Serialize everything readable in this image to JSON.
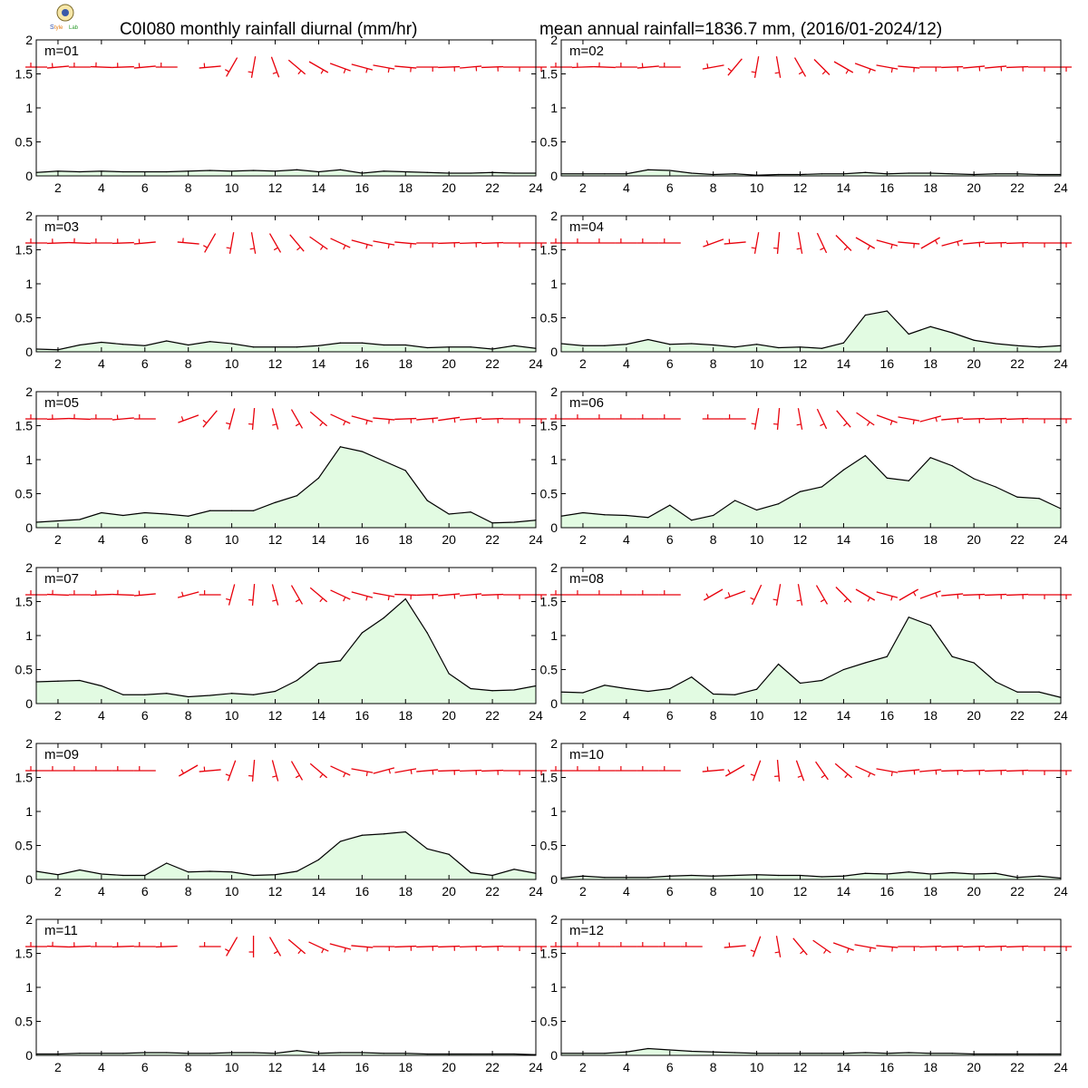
{
  "header": {
    "title_left": "C0I080 monthly rainfall diurnal (mm/hr)",
    "title_right": "mean annual rainfall=1836.7 mm, (2016/01-2024/12)",
    "logo_icon": "institution-logo-icon"
  },
  "colors": {
    "rain_fill": "#e2fbe2",
    "rain_line": "#000000",
    "wind_barb": "#e8000b",
    "frame": "#000000"
  },
  "chart_data": {
    "type": "area",
    "panel_layout": "6 rows x 2 columns (panel grid)",
    "x_ticks": [
      2,
      4,
      6,
      8,
      10,
      12,
      14,
      16,
      18,
      20,
      22,
      24
    ],
    "xlim": [
      1,
      24
    ],
    "y_ticks": [
      "0",
      "0.5",
      "1",
      "1.5",
      "2"
    ],
    "ylim": [
      0,
      2
    ],
    "wind_barb_level": 1.6,
    "panels": [
      {
        "label": "m=01",
        "values": [
          0.05,
          0.07,
          0.06,
          0.07,
          0.06,
          0.06,
          0.06,
          0.07,
          0.08,
          0.07,
          0.08,
          0.07,
          0.09,
          0.06,
          0.09,
          0.04,
          0.07,
          0.06,
          0.05,
          0.04,
          0.04,
          0.05,
          0.04,
          0.04
        ],
        "wind_dir": [
          270,
          265,
          270,
          272,
          268,
          265,
          270,
          null,
          265,
          210,
          190,
          160,
          130,
          120,
          110,
          105,
          100,
          95,
          90,
          88,
          85,
          88,
          90,
          90
        ]
      },
      {
        "label": "m=02",
        "values": [
          0.03,
          0.03,
          0.03,
          0.03,
          0.09,
          0.08,
          0.04,
          0.02,
          0.03,
          0.01,
          0.02,
          0.02,
          0.03,
          0.03,
          0.05,
          0.03,
          0.04,
          0.04,
          0.03,
          0.02,
          0.03,
          0.03,
          0.02,
          0.02
        ],
        "wind_dir": [
          270,
          268,
          272,
          270,
          265,
          270,
          null,
          260,
          220,
          190,
          170,
          150,
          135,
          120,
          110,
          100,
          95,
          90,
          88,
          85,
          85,
          88,
          90,
          90
        ]
      },
      {
        "label": "m=03",
        "values": [
          0.04,
          0.03,
          0.1,
          0.14,
          0.11,
          0.09,
          0.16,
          0.1,
          0.15,
          0.12,
          0.07,
          0.07,
          0.07,
          0.09,
          0.13,
          0.13,
          0.1,
          0.1,
          0.06,
          0.07,
          0.07,
          0.04,
          0.09,
          0.05
        ],
        "wind_dir": [
          270,
          268,
          272,
          270,
          268,
          265,
          null,
          275,
          210,
          190,
          170,
          150,
          140,
          125,
          115,
          105,
          100,
          95,
          90,
          88,
          88,
          88,
          90,
          90
        ]
      },
      {
        "label": "m=04",
        "values": [
          0.12,
          0.09,
          0.09,
          0.11,
          0.18,
          0.11,
          0.12,
          0.1,
          0.07,
          0.11,
          0.06,
          0.07,
          0.05,
          0.13,
          0.54,
          0.6,
          0.26,
          0.37,
          0.28,
          0.17,
          0.12,
          0.09,
          0.07,
          0.09
        ],
        "wind_dir": [
          270,
          270,
          270,
          270,
          270,
          270,
          null,
          250,
          265,
          190,
          185,
          170,
          155,
          135,
          120,
          105,
          95,
          60,
          75,
          85,
          88,
          88,
          90,
          90
        ]
      },
      {
        "label": "m=05",
        "values": [
          0.08,
          0.1,
          0.12,
          0.22,
          0.18,
          0.22,
          0.2,
          0.17,
          0.25,
          0.25,
          0.25,
          0.37,
          0.47,
          0.73,
          1.19,
          1.12,
          0.98,
          0.84,
          0.4,
          0.2,
          0.23,
          0.07,
          0.08,
          0.11
        ],
        "wind_dir": [
          270,
          268,
          272,
          270,
          265,
          270,
          null,
          250,
          220,
          195,
          185,
          165,
          150,
          130,
          115,
          105,
          95,
          88,
          85,
          82,
          85,
          88,
          90,
          90
        ]
      },
      {
        "label": "m=06",
        "values": [
          0.17,
          0.22,
          0.19,
          0.18,
          0.15,
          0.33,
          0.11,
          0.18,
          0.4,
          0.26,
          0.35,
          0.53,
          0.6,
          0.85,
          1.06,
          0.73,
          0.69,
          1.03,
          0.91,
          0.72,
          0.6,
          0.45,
          0.43,
          0.28
        ],
        "wind_dir": [
          270,
          270,
          270,
          270,
          270,
          270,
          null,
          270,
          270,
          190,
          185,
          170,
          155,
          140,
          125,
          110,
          100,
          75,
          85,
          88,
          88,
          88,
          90,
          90
        ]
      },
      {
        "label": "m=07",
        "values": [
          0.32,
          0.33,
          0.34,
          0.26,
          0.13,
          0.13,
          0.15,
          0.1,
          0.12,
          0.15,
          0.13,
          0.18,
          0.34,
          0.59,
          0.63,
          1.04,
          1.26,
          1.54,
          1.04,
          0.44,
          0.22,
          0.19,
          0.2,
          0.26
        ],
        "wind_dir": [
          270,
          272,
          270,
          268,
          272,
          265,
          null,
          255,
          270,
          195,
          185,
          165,
          150,
          130,
          115,
          105,
          100,
          92,
          88,
          85,
          85,
          88,
          90,
          90
        ]
      },
      {
        "label": "m=08",
        "values": [
          0.17,
          0.16,
          0.27,
          0.22,
          0.18,
          0.22,
          0.39,
          0.14,
          0.13,
          0.21,
          0.58,
          0.3,
          0.34,
          0.5,
          0.6,
          0.69,
          1.27,
          1.15,
          0.69,
          0.6,
          0.32,
          0.17,
          0.17,
          0.09
        ],
        "wind_dir": [
          270,
          270,
          270,
          270,
          270,
          270,
          null,
          240,
          250,
          205,
          190,
          170,
          150,
          135,
          120,
          105,
          60,
          70,
          85,
          88,
          88,
          88,
          90,
          90
        ]
      },
      {
        "label": "m=09",
        "values": [
          0.12,
          0.07,
          0.14,
          0.08,
          0.06,
          0.06,
          0.24,
          0.11,
          0.12,
          0.11,
          0.06,
          0.07,
          0.12,
          0.29,
          0.56,
          0.65,
          0.67,
          0.7,
          0.45,
          0.37,
          0.1,
          0.06,
          0.15,
          0.09
        ],
        "wind_dir": [
          270,
          270,
          270,
          270,
          270,
          270,
          null,
          240,
          265,
          200,
          185,
          165,
          150,
          130,
          115,
          100,
          75,
          80,
          85,
          88,
          88,
          88,
          90,
          90
        ]
      },
      {
        "label": "m=10",
        "values": [
          0.02,
          0.05,
          0.03,
          0.03,
          0.03,
          0.05,
          0.06,
          0.05,
          0.06,
          0.07,
          0.06,
          0.06,
          0.04,
          0.05,
          0.09,
          0.08,
          0.11,
          0.08,
          0.1,
          0.08,
          0.09,
          0.03,
          0.05,
          0.02
        ],
        "wind_dir": [
          270,
          270,
          270,
          270,
          270,
          270,
          null,
          265,
          240,
          200,
          175,
          160,
          145,
          130,
          115,
          100,
          85,
          85,
          88,
          88,
          88,
          88,
          90,
          90
        ]
      },
      {
        "label": "m=11",
        "values": [
          0.02,
          0.02,
          0.03,
          0.03,
          0.03,
          0.04,
          0.04,
          0.03,
          0.03,
          0.04,
          0.04,
          0.03,
          0.07,
          0.03,
          0.04,
          0.04,
          0.03,
          0.03,
          0.02,
          0.02,
          0.02,
          0.02,
          0.02,
          0.01
        ],
        "wind_dir": [
          270,
          272,
          268,
          270,
          268,
          270,
          268,
          null,
          270,
          210,
          180,
          150,
          130,
          115,
          105,
          95,
          90,
          88,
          88,
          88,
          88,
          88,
          90,
          90
        ]
      },
      {
        "label": "m=12",
        "values": [
          0.03,
          0.03,
          0.03,
          0.05,
          0.1,
          0.08,
          0.06,
          0.05,
          0.04,
          0.03,
          0.03,
          0.03,
          0.03,
          0.03,
          0.04,
          0.03,
          0.04,
          0.03,
          0.03,
          0.02,
          0.02,
          0.02,
          0.02,
          0.02
        ],
        "wind_dir": [
          270,
          270,
          270,
          270,
          270,
          270,
          270,
          null,
          265,
          200,
          170,
          140,
          125,
          110,
          100,
          95,
          90,
          88,
          88,
          88,
          88,
          88,
          90,
          90
        ]
      }
    ]
  }
}
